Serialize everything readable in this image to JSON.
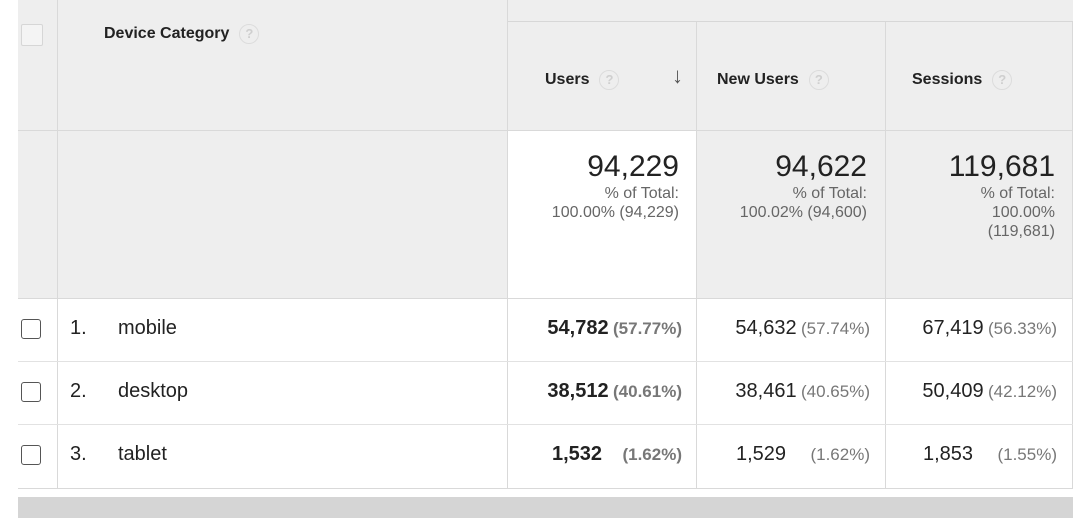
{
  "header": {
    "dimension_label": "Device Category",
    "columns": [
      {
        "label": "Users",
        "sorted": true
      },
      {
        "label": "New Users",
        "sorted": false
      },
      {
        "label": "Sessions",
        "sorted": false
      }
    ],
    "help_glyph": "?",
    "sort_glyph": "↓"
  },
  "totals": {
    "users": {
      "value": "94,229",
      "pct_label": "% of Total:",
      "pct_detail": "100.00% (94,229)"
    },
    "new_users": {
      "value": "94,622",
      "pct_label": "% of Total:",
      "pct_detail": "100.02% (94,600)"
    },
    "sessions": {
      "value": "119,681",
      "pct_label": "% of Total:",
      "pct_line1": "100.00%",
      "pct_line2": "(119,681)"
    }
  },
  "rows": [
    {
      "index": "1.",
      "name": "mobile",
      "users": "54,782",
      "users_pct": "(57.77%)",
      "new_users": "54,632",
      "new_users_pct": "(57.74%)",
      "sessions": "67,419",
      "sessions_pct": "(56.33%)"
    },
    {
      "index": "2.",
      "name": "desktop",
      "users": "38,512",
      "users_pct": "(40.61%)",
      "new_users": "38,461",
      "new_users_pct": "(40.65%)",
      "sessions": "50,409",
      "sessions_pct": "(42.12%)"
    },
    {
      "index": "3.",
      "name": "tablet",
      "users": "1,532",
      "users_pct": "(1.62%)",
      "new_users": "1,529",
      "new_users_pct": "(1.62%)",
      "sessions": "1,853",
      "sessions_pct": "(1.55%)"
    }
  ],
  "colors": {
    "header_bg": "#eeeeee",
    "border": "#d9d9d9",
    "sorted_col_bg": "#ffffff"
  }
}
